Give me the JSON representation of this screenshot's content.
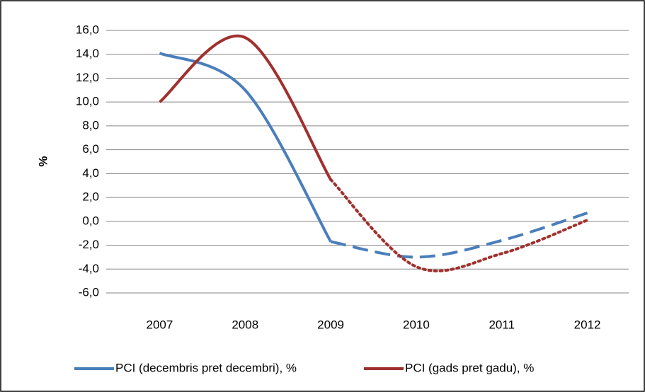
{
  "chart_data": {
    "type": "line",
    "y_label": "%",
    "categories": [
      "2007",
      "2008",
      "2009",
      "2010",
      "2011",
      "2012"
    ],
    "series": [
      {
        "name": "PCI (decembris pret decembri), %",
        "color": "#4a7ebb",
        "dash": "dashed",
        "dash_start": 2,
        "values": [
          14.1,
          11.0,
          -1.7,
          -3.0,
          -1.6,
          0.7
        ]
      },
      {
        "name": "PCI (gads pret gadu), %",
        "color": "#a0302d",
        "dash": "dotted",
        "dash_start": 2,
        "values": [
          10.0,
          15.4,
          3.5,
          -3.8,
          -2.7,
          0.1
        ]
      }
    ],
    "ylim": [
      -6,
      16
    ],
    "yticks": [
      {
        "value": -6,
        "label": "-6,0"
      },
      {
        "value": -4,
        "label": "-4,0"
      },
      {
        "value": -2,
        "label": "-2,0"
      },
      {
        "value": 0,
        "label": "0,0"
      },
      {
        "value": 2,
        "label": "2,0"
      },
      {
        "value": 4,
        "label": "4,0"
      },
      {
        "value": 6,
        "label": "6,0"
      },
      {
        "value": 8,
        "label": "8,0"
      },
      {
        "value": 10,
        "label": "10,0"
      },
      {
        "value": 12,
        "label": "12,0"
      },
      {
        "value": 14,
        "label": "14,0"
      },
      {
        "value": 16,
        "label": "16,0"
      }
    ],
    "grid": true
  }
}
